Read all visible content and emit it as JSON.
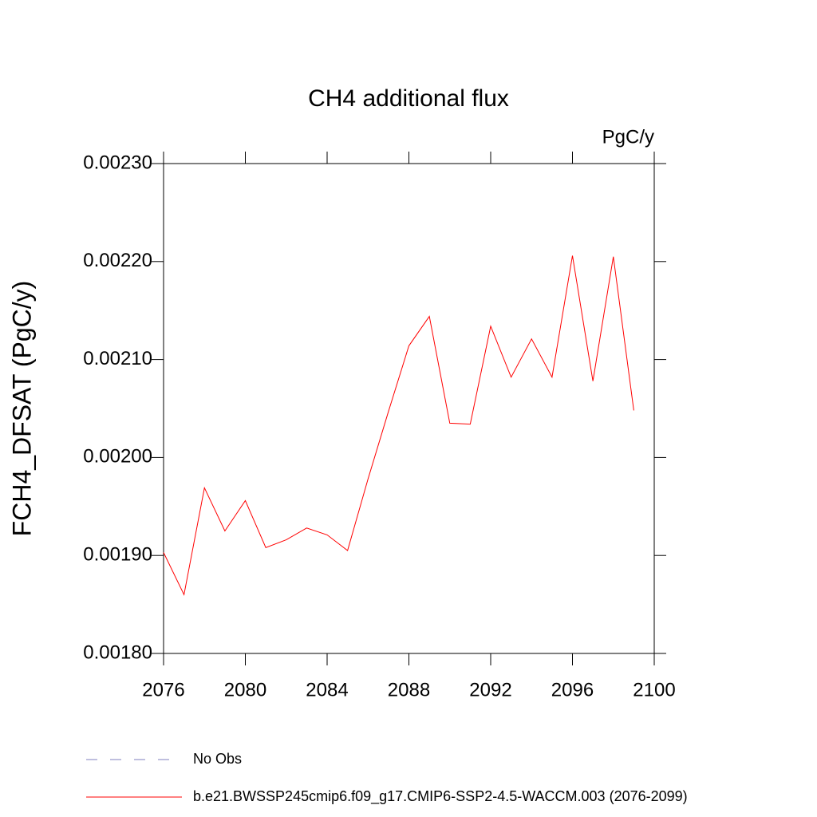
{
  "chart_data": {
    "type": "line",
    "title": "CH4 additional flux",
    "units": "PgC/y",
    "y_label": "FCH4_DFSAT  (PgC/y)",
    "x": [
      2076,
      2077,
      2078,
      2079,
      2080,
      2081,
      2082,
      2083,
      2084,
      2085,
      2086,
      2087,
      2088,
      2089,
      2090,
      2091,
      2092,
      2093,
      2094,
      2095,
      2096,
      2097,
      2098,
      2099
    ],
    "series": [
      {
        "name": "b.e21.BWSSP245cmip6.f09_g17.CMIP6-SSP2-4.5-WACCM.003 (2076-2099)",
        "color": "#ff0000",
        "values": [
          0.001903,
          0.00186,
          0.001969,
          0.001925,
          0.001956,
          0.001908,
          0.001916,
          0.001928,
          0.001921,
          0.001905,
          0.001978,
          0.002047,
          0.002114,
          0.002144,
          0.002035,
          0.002034,
          0.002134,
          0.002082,
          0.002121,
          0.002082,
          0.002206,
          0.002078,
          0.002205,
          0.002048
        ]
      }
    ],
    "legend": [
      {
        "name": "No Obs",
        "color": "#7f7fbf",
        "dashed": true
      }
    ],
    "xlim": [
      2076,
      2100
    ],
    "xticks": [
      2076,
      2080,
      2084,
      2088,
      2092,
      2096,
      2100
    ],
    "ylim": [
      0.0018,
      0.0023
    ],
    "yticks": [
      {
        "value": 0.0018,
        "label": "0.00180"
      },
      {
        "value": 0.0019,
        "label": "0.00190"
      },
      {
        "value": 0.002,
        "label": "0.00200"
      },
      {
        "value": 0.0021,
        "label": "0.00210"
      },
      {
        "value": 0.0022,
        "label": "0.00220"
      },
      {
        "value": 0.0023,
        "label": "0.00230"
      }
    ]
  }
}
